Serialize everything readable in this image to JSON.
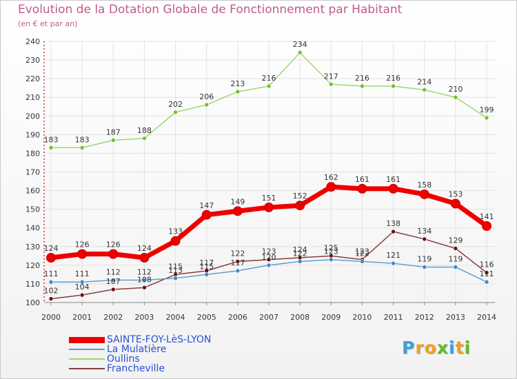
{
  "title": "Evolution de la Dotation Globale de Fonctionnement par Habitant",
  "subtitle": "(en € et par an)",
  "logo": {
    "letters": [
      "P",
      "r",
      "o",
      "x",
      "i",
      "t",
      "i"
    ],
    "colors": [
      "#3aa0e0",
      "#f0a020",
      "#f0a020",
      "#60c020",
      "#3aa0e0",
      "#f0a020",
      "#60c020"
    ]
  },
  "chart_data": {
    "type": "line",
    "title": "Evolution de la Dotation Globale de Fonctionnement par Habitant",
    "subtitle": "(en € et par an)",
    "xlabel": "",
    "ylabel": "",
    "ylim": [
      100,
      240
    ],
    "yticks": [
      100,
      110,
      120,
      130,
      140,
      150,
      160,
      170,
      180,
      190,
      200,
      210,
      220,
      230,
      240
    ],
    "grid": true,
    "legend_position": "bottom-left",
    "x": [
      "2000",
      "2001",
      "2002",
      "2003",
      "2004",
      "2005",
      "2006",
      "2007",
      "2008",
      "2009",
      "2010",
      "2011",
      "2012",
      "2013",
      "2014"
    ],
    "series": [
      {
        "name": "SAINTE-FOY-LèS-LYON",
        "color": "#ee0000",
        "point_color": "#ee0000",
        "bold": true,
        "values": [
          124,
          126,
          126,
          124,
          133,
          147,
          149,
          151,
          152,
          162,
          161,
          161,
          158,
          153,
          141
        ],
        "labels": [
          "124",
          "126",
          "126",
          "124",
          "133",
          "147",
          "149",
          "151",
          "152",
          "162",
          "161",
          "161",
          "158",
          "153",
          "141"
        ]
      },
      {
        "name": "La Mulatière",
        "color": "#5a9fd4",
        "point_color": "#3a8ad0",
        "bold": false,
        "values": [
          111,
          111,
          112,
          112,
          113,
          115,
          117,
          120,
          122,
          123,
          122,
          121,
          119,
          119,
          111
        ],
        "labels": [
          "111",
          "111",
          "112",
          "112",
          "113",
          "115",
          "117",
          "120",
          "122",
          "123",
          "122",
          "121",
          "119",
          "119",
          "111"
        ]
      },
      {
        "name": "Oullins",
        "color": "#9ad870",
        "point_color": "#70c030",
        "bold": false,
        "values": [
          183,
          183,
          187,
          188,
          202,
          206,
          213,
          216,
          234,
          217,
          216,
          216,
          214,
          210,
          199
        ],
        "labels": [
          "183",
          "183",
          "187",
          "188",
          "202",
          "206",
          "213",
          "216",
          "234",
          "217",
          "216",
          "216",
          "214",
          "210",
          "199"
        ]
      },
      {
        "name": "Francheville",
        "color": "#8a3a3a",
        "point_color": "#6a1010",
        "bold": false,
        "values": [
          102,
          104,
          107,
          108,
          115,
          117,
          122,
          123,
          124,
          125,
          123,
          138,
          134,
          129,
          116
        ],
        "labels": [
          "102",
          "104",
          "107",
          "108",
          "115",
          "117",
          "122",
          "123",
          "124",
          "125",
          "123",
          "138",
          "134",
          "129",
          "116"
        ]
      }
    ]
  }
}
